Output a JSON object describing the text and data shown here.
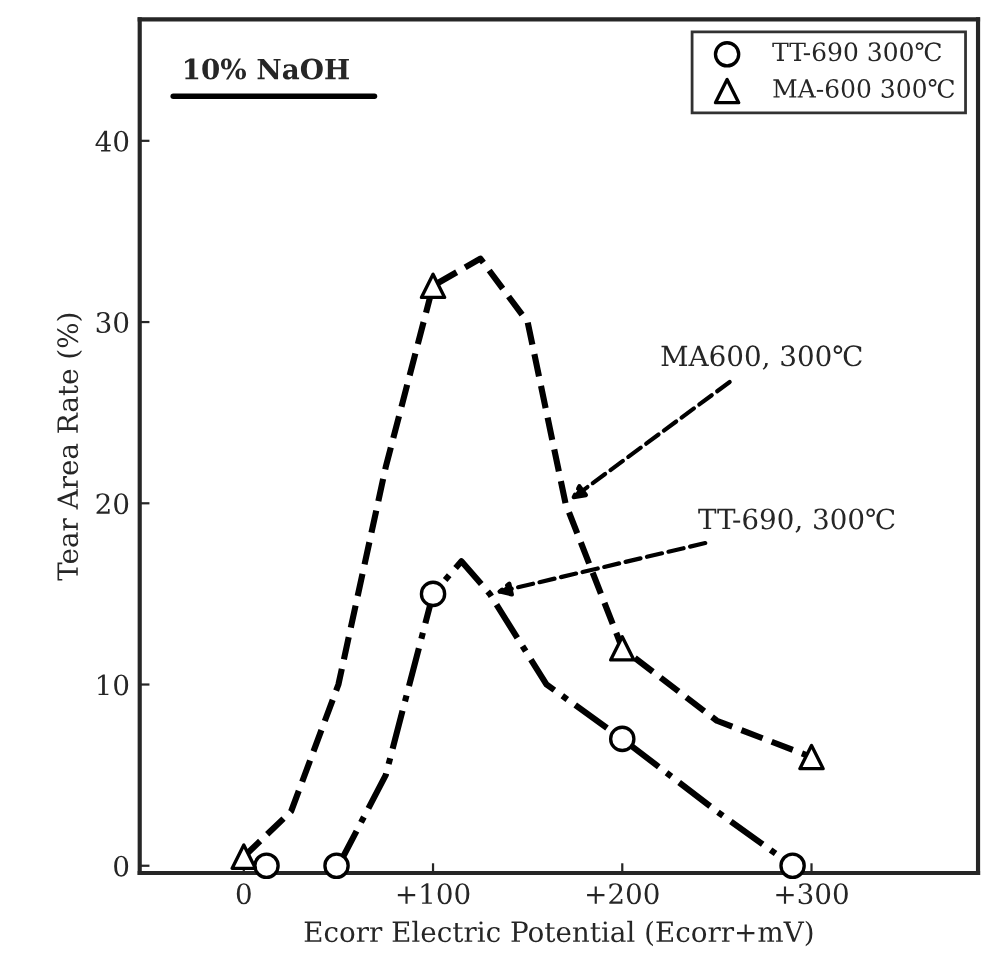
{
  "chart_data": {
    "type": "scatter",
    "xlabel": "Ecorr Electric Potential (Ecorr+mV)",
    "ylabel": "Tear Area Rate (%)",
    "xlim": [
      -55,
      388
    ],
    "ylim": [
      -0.4,
      46.7
    ],
    "xticks": [
      0,
      {
        "value": 100,
        "label": "+100"
      },
      {
        "value": 200,
        "label": "+200"
      },
      {
        "value": 300,
        "label": "+300"
      }
    ],
    "yticks": [
      0,
      10,
      20,
      30,
      40
    ],
    "grid": false,
    "legend": "top right",
    "series": [
      {
        "type": "line",
        "color": "#000000",
        "line_style": "dashed",
        "marker": "none",
        "x": [
          0,
          25,
          50,
          75,
          100,
          125,
          150,
          170,
          200,
          250,
          300
        ],
        "values": [
          0.5,
          3,
          10,
          22,
          32,
          33.5,
          30,
          20,
          12,
          8,
          6
        ]
      },
      {
        "type": "line",
        "color": "#000000",
        "line_style": "dashdot",
        "marker": "none",
        "x": [
          50,
          75,
          100,
          115,
          130,
          160,
          200,
          250,
          290
        ],
        "values": [
          0,
          5,
          15,
          16.8,
          15,
          10,
          7,
          3,
          0
        ]
      },
      {
        "name": "TT-690 300℃",
        "color": "#000000",
        "marker": "circle",
        "x": [
          12,
          49,
          100,
          200,
          290
        ],
        "values": [
          0,
          0,
          15,
          7,
          0
        ]
      },
      {
        "name": "MA-600 300℃",
        "color": "#000000",
        "marker": "triangle",
        "x": [
          0,
          100,
          200,
          300
        ],
        "values": [
          0.5,
          32,
          12,
          6
        ]
      }
    ],
    "annotations": [
      {
        "text": "10% NaOH"
      },
      {
        "text": "MA600, 300℃",
        "x": 170,
        "y": 20
      },
      {
        "text": "TT-690, 300℃",
        "x": 130,
        "y": 15
      }
    ]
  }
}
